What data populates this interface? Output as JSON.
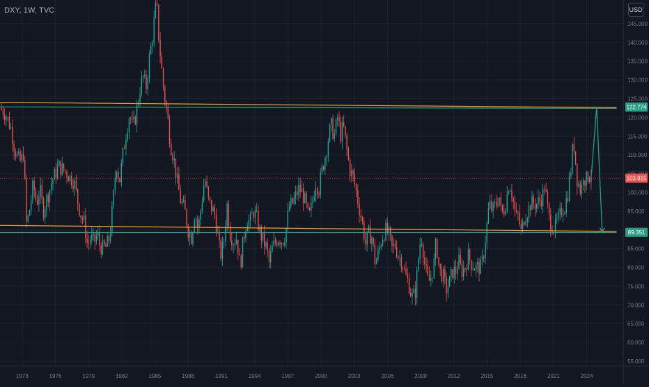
{
  "header": {
    "symbol": "DXY, 1W, TVC",
    "currency_button": "USD"
  },
  "colors": {
    "background": "#131722",
    "grid": "#1e2230",
    "axis_text": "#787b86",
    "candle_up": "#26a69a",
    "candle_down": "#ef5350",
    "trendline_orange": "#f0a030",
    "trendline_green": "#2a9d84",
    "projection": "#2a9d84",
    "current_price_line": "#ef5350"
  },
  "chart_data": {
    "type": "line",
    "title": "DXY, 1W, TVC",
    "xlabel": "",
    "ylabel": "",
    "ylim": [
      53.7,
      151.3
    ],
    "xlim": [
      1971.0,
      2027.3
    ],
    "grid": true,
    "y_ticks": [
      "55.000",
      "60.000",
      "65.000",
      "70.000",
      "75.000",
      "80.000",
      "85.000",
      "90.000",
      "95.000",
      "100.000",
      "105.000",
      "110.000",
      "115.000",
      "120.000",
      "125.000",
      "130.000",
      "135.000",
      "140.000",
      "145.000"
    ],
    "y_tick_values": [
      55,
      60,
      65,
      70,
      75,
      80,
      85,
      90,
      95,
      100,
      105,
      110,
      115,
      120,
      125,
      130,
      135,
      140,
      145
    ],
    "x_ticks": [
      "1973",
      "1976",
      "1979",
      "1982",
      "1985",
      "1988",
      "1991",
      "1994",
      "1997",
      "2000",
      "2003",
      "2006",
      "2009",
      "2012",
      "2015",
      "2018",
      "2021",
      "2024"
    ],
    "x_tick_values": [
      1973,
      1976,
      1979,
      1982,
      1985,
      1988,
      1991,
      1994,
      1997,
      2000,
      2003,
      2006,
      2009,
      2012,
      2015,
      2018,
      2021,
      2024
    ],
    "series": [
      {
        "type": "candlestick-trace",
        "points": [
          [
            1971.0,
            122.5
          ],
          [
            1971.5,
            121.0
          ],
          [
            1972.0,
            117.0
          ],
          [
            1972.3,
            112.0
          ],
          [
            1972.6,
            109.0
          ],
          [
            1972.9,
            108.0
          ],
          [
            1973.1,
            111.0
          ],
          [
            1973.25,
            102.0
          ],
          [
            1973.4,
            91.0
          ],
          [
            1973.7,
            96.0
          ],
          [
            1974.0,
            102.0
          ],
          [
            1974.3,
            97.0
          ],
          [
            1974.6,
            101.0
          ],
          [
            1974.9,
            95.0
          ],
          [
            1975.3,
            99.0
          ],
          [
            1975.7,
            103.0
          ],
          [
            1976.0,
            105.0
          ],
          [
            1976.3,
            107.0
          ],
          [
            1976.7,
            106.0
          ],
          [
            1977.0,
            105.5
          ],
          [
            1977.3,
            104.0
          ],
          [
            1977.7,
            103.0
          ],
          [
            1978.0,
            98.0
          ],
          [
            1978.3,
            94.0
          ],
          [
            1978.6,
            92.0
          ],
          [
            1978.9,
            86.0
          ],
          [
            1979.2,
            88.0
          ],
          [
            1979.5,
            86.5
          ],
          [
            1979.8,
            89.0
          ],
          [
            1980.0,
            86.0
          ],
          [
            1980.3,
            85.0
          ],
          [
            1980.6,
            85.5
          ],
          [
            1980.9,
            88.0
          ],
          [
            1981.2,
            97.0
          ],
          [
            1981.5,
            108.0
          ],
          [
            1981.8,
            103.0
          ],
          [
            1982.1,
            110.0
          ],
          [
            1982.4,
            116.0
          ],
          [
            1982.7,
            121.0
          ],
          [
            1983.0,
            117.0
          ],
          [
            1983.3,
            121.0
          ],
          [
            1983.6,
            127.0
          ],
          [
            1983.9,
            131.0
          ],
          [
            1984.2,
            128.0
          ],
          [
            1984.5,
            136.0
          ],
          [
            1984.8,
            142.0
          ],
          [
            1985.0,
            148.0
          ],
          [
            1985.15,
            150.5
          ],
          [
            1985.3,
            143.0
          ],
          [
            1985.5,
            136.0
          ],
          [
            1985.8,
            127.0
          ],
          [
            1986.1,
            121.0
          ],
          [
            1986.4,
            113.0
          ],
          [
            1986.7,
            109.0
          ],
          [
            1987.0,
            103.0
          ],
          [
            1987.3,
            98.0
          ],
          [
            1987.7,
            95.0
          ],
          [
            1988.0,
            90.0
          ],
          [
            1988.3,
            88.0
          ],
          [
            1988.6,
            95.0
          ],
          [
            1988.9,
            90.0
          ],
          [
            1989.2,
            97.0
          ],
          [
            1989.5,
            104.0
          ],
          [
            1989.8,
            98.0
          ],
          [
            1990.1,
            96.0
          ],
          [
            1990.4,
            94.0
          ],
          [
            1990.7,
            88.0
          ],
          [
            1990.9,
            83.0
          ],
          [
            1991.2,
            86.0
          ],
          [
            1991.5,
            97.0
          ],
          [
            1991.8,
            89.0
          ],
          [
            1992.1,
            87.0
          ],
          [
            1992.4,
            88.0
          ],
          [
            1992.7,
            80.0
          ],
          [
            1993.0,
            88.0
          ],
          [
            1993.3,
            93.0
          ],
          [
            1993.6,
            92.0
          ],
          [
            1993.9,
            95.0
          ],
          [
            1994.2,
            93.0
          ],
          [
            1994.5,
            89.0
          ],
          [
            1994.8,
            87.0
          ],
          [
            1995.1,
            85.0
          ],
          [
            1995.3,
            81.0
          ],
          [
            1995.6,
            85.0
          ],
          [
            1995.9,
            87.0
          ],
          [
            1996.2,
            88.0
          ],
          [
            1996.5,
            87.0
          ],
          [
            1996.8,
            89.0
          ],
          [
            1997.1,
            96.0
          ],
          [
            1997.4,
            97.0
          ],
          [
            1997.7,
            99.0
          ],
          [
            1998.0,
            101.0
          ],
          [
            1998.3,
            100.0
          ],
          [
            1998.6,
            97.0
          ],
          [
            1998.9,
            93.0
          ],
          [
            1999.2,
            97.0
          ],
          [
            1999.5,
            103.0
          ],
          [
            1999.8,
            101.0
          ],
          [
            2000.1,
            106.0
          ],
          [
            2000.4,
            110.0
          ],
          [
            2000.7,
            115.0
          ],
          [
            2000.9,
            118.0
          ],
          [
            2001.2,
            115.0
          ],
          [
            2001.5,
            120.0
          ],
          [
            2001.8,
            115.0
          ],
          [
            2002.0,
            118.0
          ],
          [
            2002.3,
            112.0
          ],
          [
            2002.6,
            106.0
          ],
          [
            2002.9,
            104.0
          ],
          [
            2003.2,
            100.0
          ],
          [
            2003.5,
            95.0
          ],
          [
            2003.8,
            91.0
          ],
          [
            2004.0,
            86.0
          ],
          [
            2004.3,
            89.0
          ],
          [
            2004.6,
            88.0
          ],
          [
            2004.9,
            81.0
          ],
          [
            2005.2,
            84.0
          ],
          [
            2005.5,
            88.0
          ],
          [
            2005.8,
            90.0
          ],
          [
            2006.1,
            89.0
          ],
          [
            2006.4,
            85.0
          ],
          [
            2006.7,
            86.0
          ],
          [
            2007.0,
            83.0
          ],
          [
            2007.3,
            82.0
          ],
          [
            2007.6,
            78.0
          ],
          [
            2007.9,
            76.0
          ],
          [
            2008.2,
            72.0
          ],
          [
            2008.5,
            73.0
          ],
          [
            2008.7,
            79.0
          ],
          [
            2008.9,
            86.0
          ],
          [
            2009.1,
            88.0
          ],
          [
            2009.4,
            80.0
          ],
          [
            2009.7,
            76.0
          ],
          [
            2009.9,
            77.0
          ],
          [
            2010.2,
            81.0
          ],
          [
            2010.4,
            87.0
          ],
          [
            2010.7,
            79.0
          ],
          [
            2011.0,
            78.0
          ],
          [
            2011.3,
            74.0
          ],
          [
            2011.6,
            76.0
          ],
          [
            2011.9,
            79.0
          ],
          [
            2012.2,
            79.0
          ],
          [
            2012.4,
            82.0
          ],
          [
            2012.7,
            79.0
          ],
          [
            2013.0,
            80.0
          ],
          [
            2013.3,
            83.0
          ],
          [
            2013.6,
            81.0
          ],
          [
            2013.9,
            80.0
          ],
          [
            2014.2,
            80.0
          ],
          [
            2014.5,
            80.0
          ],
          [
            2014.7,
            84.0
          ],
          [
            2014.9,
            89.0
          ],
          [
            2015.2,
            97.0
          ],
          [
            2015.5,
            95.0
          ],
          [
            2015.8,
            97.0
          ],
          [
            2016.1,
            99.0
          ],
          [
            2016.3,
            94.0
          ],
          [
            2016.6,
            96.0
          ],
          [
            2016.9,
            101.0
          ],
          [
            2017.0,
            103.0
          ],
          [
            2017.3,
            99.0
          ],
          [
            2017.6,
            93.0
          ],
          [
            2017.8,
            94.0
          ],
          [
            2018.1,
            89.0
          ],
          [
            2018.4,
            94.0
          ],
          [
            2018.7,
            95.0
          ],
          [
            2018.9,
            97.0
          ],
          [
            2019.2,
            97.0
          ],
          [
            2019.5,
            97.0
          ],
          [
            2019.8,
            98.0
          ],
          [
            2020.0,
            99.0
          ],
          [
            2020.2,
            102.0
          ],
          [
            2020.4,
            97.0
          ],
          [
            2020.6,
            93.0
          ],
          [
            2020.9,
            91.0
          ],
          [
            2021.1,
            90.0
          ],
          [
            2021.3,
            92.0
          ],
          [
            2021.5,
            93.0
          ],
          [
            2021.8,
            96.0
          ],
          [
            2022.0,
            96.0
          ],
          [
            2022.3,
            100.0
          ],
          [
            2022.6,
            107.0
          ],
          [
            2022.8,
            114.0
          ],
          [
            2022.95,
            110.0
          ],
          [
            2023.1,
            104.0
          ],
          [
            2023.3,
            102.0
          ],
          [
            2023.5,
            100.0
          ],
          [
            2023.7,
            105.0
          ],
          [
            2023.9,
            103.0
          ],
          [
            2024.1,
            104.0
          ],
          [
            2024.3,
            106.0
          ],
          [
            2024.4,
            103.8
          ]
        ]
      },
      {
        "type": "trendline",
        "name": "upper-resistance",
        "color_key": "trendline_orange",
        "points": [
          [
            1971.0,
            124.0
          ],
          [
            2026.7,
            122.6
          ]
        ]
      },
      {
        "type": "trendline",
        "name": "upper-resistance-green",
        "color_key": "trendline_green",
        "points": [
          [
            1971.0,
            122.8
          ],
          [
            2026.7,
            122.4
          ]
        ]
      },
      {
        "type": "trendline",
        "name": "lower-support",
        "color_key": "trendline_orange",
        "points": [
          [
            1971.0,
            91.2
          ],
          [
            2026.7,
            89.6
          ]
        ]
      },
      {
        "type": "trendline",
        "name": "lower-support-green",
        "color_key": "trendline_green",
        "points": [
          [
            1971.0,
            89.3
          ],
          [
            2026.7,
            89.3
          ]
        ]
      },
      {
        "type": "projection",
        "name": "forecast-path",
        "color_key": "projection",
        "points": [
          [
            2024.4,
            103.8
          ],
          [
            2024.9,
            122.7
          ],
          [
            2025.4,
            89.5
          ]
        ]
      },
      {
        "type": "price-line",
        "name": "current-price",
        "color_key": "current_price_line",
        "value": 103.815
      }
    ],
    "price_badges": [
      {
        "label": "122.774",
        "value": 122.774,
        "color": "#2a9d84"
      },
      {
        "label": "103.815",
        "value": 103.815,
        "color": "#ef5350"
      },
      {
        "label": "89.351",
        "value": 89.351,
        "color": "#2a9d84"
      }
    ]
  }
}
